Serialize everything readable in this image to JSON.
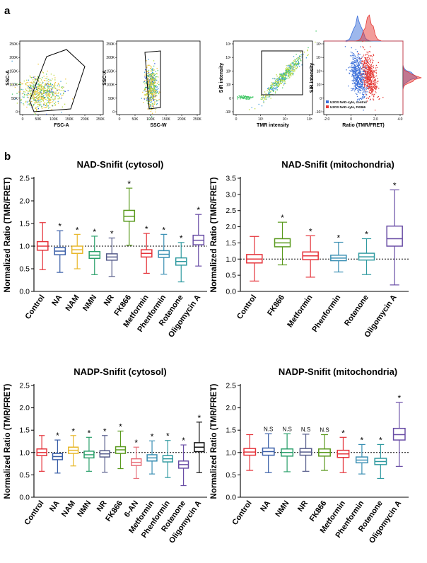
{
  "panel_a": {
    "label": "a",
    "plots": [
      {
        "type": "scatter",
        "xlabel": "FSC-A",
        "ylabel": "SSC-A",
        "xticks": [
          "0",
          "50K",
          "100K",
          "150K",
          "200K",
          "250K"
        ],
        "yticks": [
          "0",
          "50K",
          "100K",
          "150K",
          "200K",
          "250K"
        ]
      },
      {
        "type": "scatter",
        "xlabel": "SSC-W",
        "ylabel": "SSC-A",
        "xticks": [
          "0",
          "50K",
          "100K",
          "150K",
          "200K",
          "250K"
        ],
        "yticks": [
          "0",
          "50K",
          "100K",
          "150K",
          "200K",
          "250K"
        ]
      },
      {
        "type": "scatter",
        "xlabel": "TMR intensity",
        "ylabel": "SiR intensity",
        "xticks": [
          "0",
          "10³",
          "10⁴",
          "10⁵"
        ],
        "yticks": [
          "-10²",
          "0",
          "10²",
          "10³",
          "10⁴",
          "10⁵"
        ]
      },
      {
        "type": "scatter",
        "xlabel": "Ratio (TMR/FRET)",
        "ylabel": "SiR intensity",
        "xticks": [
          "-2.0",
          "0",
          "2.0",
          "4.0"
        ],
        "yticks": [
          "-10²",
          "0",
          "10²",
          "10³",
          "10⁴",
          "10⁵"
        ],
        "legend": [
          {
            "label": "U2OS NAD-cyto, control",
            "color": "#3b6fd9"
          },
          {
            "label": "U2OS NAD-cyto, FK866",
            "color": "#e53935"
          }
        ]
      }
    ]
  },
  "panel_b": {
    "label": "b"
  },
  "chart_data": [
    {
      "type": "box",
      "title": "NAD-Snifit (cytosol)",
      "ylabel": "Normalized Ratio (TMR/FRET)",
      "ylim": [
        0,
        2.5
      ],
      "yticks": [
        "0.0",
        "0.5",
        "1.0",
        "1.5",
        "2.0",
        "2.5"
      ],
      "reference_line": 1.0,
      "categories": [
        "Control",
        "NA",
        "NAM",
        "NMN",
        "NR",
        "FK866",
        "Metformin",
        "Phenformin",
        "Rotenone",
        "Oligomycin A"
      ],
      "colors": [
        "#e5333a",
        "#3a5fa8",
        "#e8b82a",
        "#2aa06b",
        "#555b8a",
        "#5a9a1e",
        "#e5333a",
        "#3a8fb3",
        "#2f9aa0",
        "#6a4ea6"
      ],
      "series": [
        {
          "min": 0.48,
          "q1": 0.91,
          "median": 1.0,
          "q3": 1.1,
          "max": 1.52,
          "label": ""
        },
        {
          "min": 0.42,
          "q1": 0.81,
          "median": 0.89,
          "q3": 0.97,
          "max": 1.34,
          "label": "*"
        },
        {
          "min": 0.5,
          "q1": 0.84,
          "median": 0.92,
          "q3": 1.0,
          "max": 1.26,
          "label": "*"
        },
        {
          "min": 0.37,
          "q1": 0.73,
          "median": 0.8,
          "q3": 0.88,
          "max": 1.22,
          "label": "*"
        },
        {
          "min": 0.33,
          "q1": 0.69,
          "median": 0.76,
          "q3": 0.83,
          "max": 1.18,
          "label": "*"
        },
        {
          "min": 1.02,
          "q1": 1.55,
          "median": 1.66,
          "q3": 1.79,
          "max": 2.28,
          "label": "*"
        },
        {
          "min": 0.4,
          "q1": 0.76,
          "median": 0.84,
          "q3": 0.92,
          "max": 1.28,
          "label": "*"
        },
        {
          "min": 0.38,
          "q1": 0.75,
          "median": 0.82,
          "q3": 0.9,
          "max": 1.26,
          "label": "*"
        },
        {
          "min": 0.21,
          "q1": 0.58,
          "median": 0.66,
          "q3": 0.74,
          "max": 1.08,
          "label": "*"
        },
        {
          "min": 0.56,
          "q1": 1.03,
          "median": 1.13,
          "q3": 1.24,
          "max": 1.7,
          "label": "*"
        }
      ]
    },
    {
      "type": "box",
      "title": "NAD-Snifit (mitochondria)",
      "ylabel": "Normalized Ratio (TMR/FRET)",
      "ylim": [
        0,
        3.5
      ],
      "yticks": [
        "0.0",
        "0.5",
        "1.0",
        "1.5",
        "2.0",
        "2.5",
        "3.0",
        "3.5"
      ],
      "reference_line": 1.0,
      "categories": [
        "Control",
        "FK866",
        "Metformin",
        "Phenformin",
        "Rotenone",
        "Oligomycin A"
      ],
      "colors": [
        "#e5333a",
        "#5a9a1e",
        "#e5333a",
        "#3a8fb3",
        "#2f9aa0",
        "#6a4ea6"
      ],
      "series": [
        {
          "min": 0.32,
          "q1": 0.88,
          "median": 1.0,
          "q3": 1.14,
          "max": 1.7,
          "label": ""
        },
        {
          "min": 0.82,
          "q1": 1.38,
          "median": 1.5,
          "q3": 1.63,
          "max": 2.14,
          "label": "*"
        },
        {
          "min": 0.44,
          "q1": 0.98,
          "median": 1.1,
          "q3": 1.22,
          "max": 1.72,
          "label": "*"
        },
        {
          "min": 0.6,
          "q1": 0.95,
          "median": 1.03,
          "q3": 1.12,
          "max": 1.52,
          "label": "*"
        },
        {
          "min": 0.52,
          "q1": 0.97,
          "median": 1.07,
          "q3": 1.18,
          "max": 1.63,
          "label": "*"
        },
        {
          "min": 0.2,
          "q1": 1.4,
          "median": 1.63,
          "q3": 2.02,
          "max": 3.14,
          "label": "*"
        }
      ]
    },
    {
      "type": "box",
      "title": "NADP-Snifit (cytosol)",
      "ylabel": "Normalized Ratio (TMR/FRET)",
      "ylim": [
        0,
        2.5
      ],
      "yticks": [
        "0.0",
        "0.5",
        "1.0",
        "1.5",
        "2.0",
        "2.5"
      ],
      "reference_line": 1.0,
      "categories": [
        "Control",
        "NA",
        "NAM",
        "NMN",
        "NR",
        "FK866",
        "6-AN",
        "Metformin",
        "Phenformin",
        "Rotenone",
        "Oligomycin A"
      ],
      "colors": [
        "#e5333a",
        "#3a5fa8",
        "#e8b82a",
        "#2aa06b",
        "#555b8a",
        "#5a9a1e",
        "#e8707a",
        "#3a8fb3",
        "#2f9aa0",
        "#6a4ea6",
        "#111111"
      ],
      "series": [
        {
          "min": 0.58,
          "q1": 0.93,
          "median": 1.0,
          "q3": 1.08,
          "max": 1.38,
          "label": ""
        },
        {
          "min": 0.54,
          "q1": 0.84,
          "median": 0.91,
          "q3": 0.98,
          "max": 1.28,
          "label": "*"
        },
        {
          "min": 0.7,
          "q1": 0.98,
          "median": 1.05,
          "q3": 1.12,
          "max": 1.38,
          "label": "*"
        },
        {
          "min": 0.58,
          "q1": 0.88,
          "median": 0.95,
          "q3": 1.03,
          "max": 1.34,
          "label": "*"
        },
        {
          "min": 0.56,
          "q1": 0.9,
          "median": 0.97,
          "q3": 1.04,
          "max": 1.38,
          "label": "*"
        },
        {
          "min": 0.64,
          "q1": 0.98,
          "median": 1.06,
          "q3": 1.13,
          "max": 1.48,
          "label": "*"
        },
        {
          "min": 0.42,
          "q1": 0.71,
          "median": 0.78,
          "q3": 0.86,
          "max": 1.12,
          "label": "*"
        },
        {
          "min": 0.52,
          "q1": 0.81,
          "median": 0.88,
          "q3": 0.95,
          "max": 1.26,
          "label": "*"
        },
        {
          "min": 0.44,
          "q1": 0.79,
          "median": 0.86,
          "q3": 0.93,
          "max": 1.27,
          "label": "*"
        },
        {
          "min": 0.26,
          "q1": 0.65,
          "median": 0.73,
          "q3": 0.81,
          "max": 1.17,
          "label": "*"
        },
        {
          "min": 0.55,
          "q1": 1.02,
          "median": 1.12,
          "q3": 1.22,
          "max": 1.68,
          "label": "*"
        }
      ]
    },
    {
      "type": "box",
      "title": "NADP-Snifit (mitochondria)",
      "ylabel": "Normalized Ratio (TMR/FRET)",
      "ylim": [
        0,
        2.5
      ],
      "yticks": [
        "0.0",
        "0.5",
        "1.0",
        "1.5",
        "2.0",
        "2.5"
      ],
      "reference_line": 1.0,
      "categories": [
        "Control",
        "NA",
        "NMN",
        "NR",
        "FK866",
        "Metformin",
        "Phenformin",
        "Rotenone",
        "Oligomycin A"
      ],
      "colors": [
        "#e5333a",
        "#3a5fa8",
        "#2aa06b",
        "#555b8a",
        "#5a9a1e",
        "#e5333a",
        "#3a8fb3",
        "#2f9aa0",
        "#6a4ea6"
      ],
      "series": [
        {
          "min": 0.6,
          "q1": 0.94,
          "median": 1.01,
          "q3": 1.09,
          "max": 1.4,
          "label": ""
        },
        {
          "min": 0.55,
          "q1": 0.94,
          "median": 1.02,
          "q3": 1.1,
          "max": 1.42,
          "label": "N.S"
        },
        {
          "min": 0.57,
          "q1": 0.92,
          "median": 1.0,
          "q3": 1.08,
          "max": 1.42,
          "label": "N.S"
        },
        {
          "min": 0.58,
          "q1": 0.94,
          "median": 1.01,
          "q3": 1.09,
          "max": 1.41,
          "label": "N.S"
        },
        {
          "min": 0.6,
          "q1": 0.92,
          "median": 1.0,
          "q3": 1.08,
          "max": 1.4,
          "label": "N.S"
        },
        {
          "min": 0.55,
          "q1": 0.89,
          "median": 0.97,
          "q3": 1.05,
          "max": 1.34,
          "label": "*"
        },
        {
          "min": 0.52,
          "q1": 0.77,
          "median": 0.83,
          "q3": 0.9,
          "max": 1.18,
          "label": "*"
        },
        {
          "min": 0.42,
          "q1": 0.73,
          "median": 0.8,
          "q3": 0.87,
          "max": 1.18,
          "label": "*"
        },
        {
          "min": 0.69,
          "q1": 1.28,
          "median": 1.4,
          "q3": 1.54,
          "max": 2.12,
          "label": "*"
        }
      ]
    }
  ]
}
